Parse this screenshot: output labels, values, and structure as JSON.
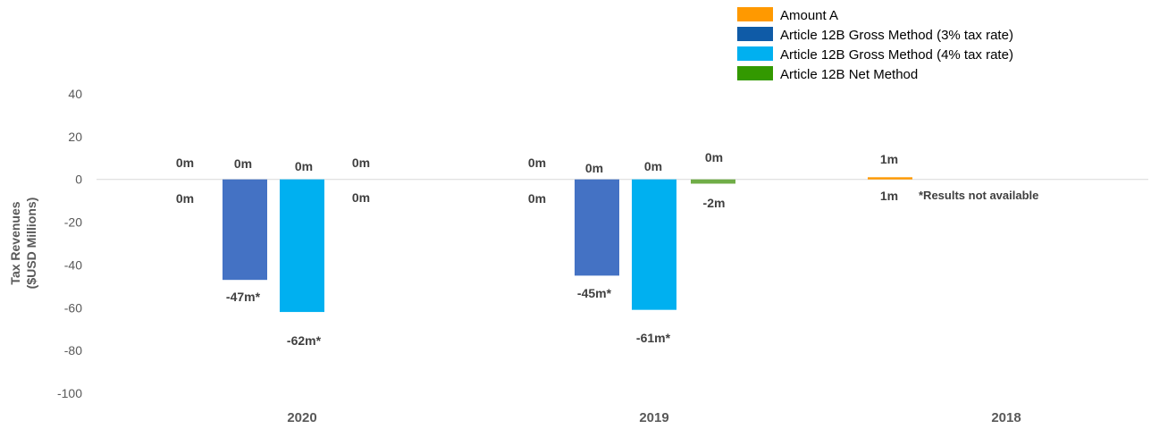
{
  "chart_data": {
    "type": "bar",
    "categories": [
      "2020",
      "2019",
      "2018"
    ],
    "ylabel_lines": [
      "Tax Revenues",
      "($USD Millions)"
    ],
    "ylim": [
      -100,
      40
    ],
    "yticks": [
      40,
      20,
      0,
      -20,
      -40,
      -60,
      -80,
      -100
    ],
    "grid": false,
    "legend_position": "top-right",
    "series": [
      {
        "name": "Amount A",
        "color": "#FF9900",
        "values": [
          0,
          0,
          1
        ],
        "labels": [
          "0m",
          "0m",
          "1m"
        ]
      },
      {
        "name": "Article 12B Gross Method (3% tax rate)",
        "color": "#0F5BA7",
        "legend_color": "#0F5BA7",
        "bar_color": "#4472C4",
        "values": [
          -47,
          -45,
          null
        ],
        "labels": [
          "-47m*",
          "-45m*",
          ""
        ]
      },
      {
        "name": "Article 12B Gross Method (4% tax rate)",
        "color": "#00B0F0",
        "values": [
          -62,
          -61,
          null
        ],
        "labels": [
          "-62m*",
          "-61m*",
          ""
        ]
      },
      {
        "name": "Article 12B Net Method",
        "color": "#339900",
        "bar_color": "#70AD47",
        "values": [
          0,
          -2,
          null
        ],
        "labels": [
          "0m",
          "-2m",
          ""
        ]
      }
    ],
    "annotations": {
      "top_labels": [
        [
          "0m",
          "0m",
          "0m",
          "0m"
        ],
        [
          "0m",
          "0m",
          "0m",
          "0m"
        ],
        [
          "1m"
        ]
      ],
      "below_labels": [
        [
          "0m",
          "0m"
        ],
        [
          "0m",
          "-2m"
        ],
        [
          "1m"
        ]
      ],
      "note": "*Results not available"
    }
  }
}
